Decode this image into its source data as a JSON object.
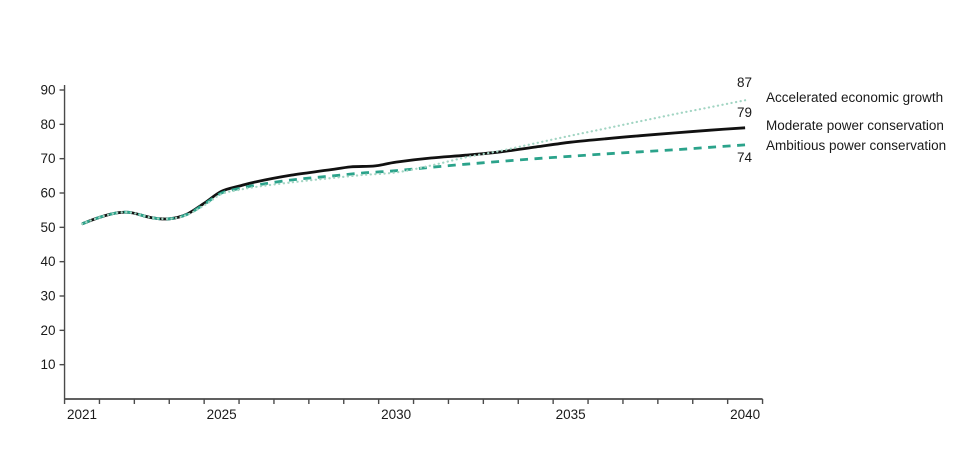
{
  "chart_data": {
    "type": "line",
    "title": "",
    "xlabel": "",
    "ylabel": "",
    "grid": false,
    "legend_position": "right-of-line-ends",
    "x_axis": {
      "range": [
        2020.5,
        2040.5
      ],
      "tick_step": 1,
      "labeled_ticks": [
        2021,
        2025,
        2030,
        2035,
        2040
      ]
    },
    "y_axis": {
      "range": [
        0,
        90
      ],
      "tick_step": 10,
      "labeled_ticks": [
        10,
        20,
        30,
        40,
        50,
        60,
        70,
        80,
        90
      ]
    },
    "series": [
      {
        "name": "Moderate power conservation",
        "color": "#111111",
        "style": "solid",
        "end_value": 79,
        "end_label": "79",
        "points": [
          [
            2021,
            51
          ],
          [
            2021.5,
            52.9
          ],
          [
            2022,
            54.2
          ],
          [
            2022.4,
            54.3
          ],
          [
            2023,
            52.8
          ],
          [
            2023.5,
            52.5
          ],
          [
            2024,
            53.8
          ],
          [
            2024.5,
            57
          ],
          [
            2025,
            60.5
          ],
          [
            2025.5,
            62
          ],
          [
            2026,
            63.3
          ],
          [
            2027,
            65.2
          ],
          [
            2028,
            66.6
          ],
          [
            2028.7,
            67.6
          ],
          [
            2029.4,
            67.9
          ],
          [
            2030,
            69
          ],
          [
            2031,
            70.2
          ],
          [
            2032,
            71
          ],
          [
            2033,
            72
          ],
          [
            2034,
            73.4
          ],
          [
            2035,
            74.8
          ],
          [
            2036,
            75.8
          ],
          [
            2037,
            76.7
          ],
          [
            2038,
            77.5
          ],
          [
            2039,
            78.3
          ],
          [
            2040,
            79
          ]
        ]
      },
      {
        "name": "Ambitious power conservation",
        "color": "#2ba38b",
        "style": "dashed",
        "end_value": 74,
        "end_label": "74",
        "points": [
          [
            2021,
            51
          ],
          [
            2021.5,
            52.9
          ],
          [
            2022,
            54.2
          ],
          [
            2022.4,
            54.3
          ],
          [
            2023,
            52.8
          ],
          [
            2023.5,
            52.5
          ],
          [
            2024,
            53.7
          ],
          [
            2024.5,
            56.7
          ],
          [
            2025,
            60
          ],
          [
            2025.5,
            61.3
          ],
          [
            2026,
            62.3
          ],
          [
            2027,
            63.8
          ],
          [
            2028,
            64.8
          ],
          [
            2029,
            65.8
          ],
          [
            2030,
            66.5
          ],
          [
            2031,
            67.5
          ],
          [
            2032,
            68.4
          ],
          [
            2033,
            69.2
          ],
          [
            2034,
            70
          ],
          [
            2035,
            70.7
          ],
          [
            2036,
            71.4
          ],
          [
            2037,
            72
          ],
          [
            2038,
            72.6
          ],
          [
            2039,
            73.3
          ],
          [
            2040,
            74
          ]
        ]
      },
      {
        "name": "Accelerated economic growth",
        "color": "#a2d5c3",
        "style": "dotted",
        "end_value": 87,
        "end_label": "87",
        "points": [
          [
            2021,
            51
          ],
          [
            2021.5,
            52.9
          ],
          [
            2022,
            54.2
          ],
          [
            2022.4,
            54.3
          ],
          [
            2023,
            52.8
          ],
          [
            2023.5,
            52.5
          ],
          [
            2024,
            53.6
          ],
          [
            2024.5,
            56.4
          ],
          [
            2025,
            59.7
          ],
          [
            2025.5,
            60.9
          ],
          [
            2026,
            61.8
          ],
          [
            2027,
            63.1
          ],
          [
            2028,
            64.2
          ],
          [
            2029,
            65.2
          ],
          [
            2030,
            66
          ],
          [
            2031,
            68
          ],
          [
            2032,
            70.4
          ],
          [
            2033,
            72.3
          ],
          [
            2034,
            74.5
          ],
          [
            2035,
            76.7
          ],
          [
            2036,
            78.8
          ],
          [
            2037,
            80.9
          ],
          [
            2038,
            83
          ],
          [
            2039,
            85
          ],
          [
            2040,
            87
          ]
        ]
      }
    ],
    "colors": {
      "axis": "#4a4a4a",
      "tick_text": "#1a1a1a",
      "accelerated": "#a2d5c3",
      "moderate": "#111111",
      "ambitious": "#2ba38b"
    }
  }
}
